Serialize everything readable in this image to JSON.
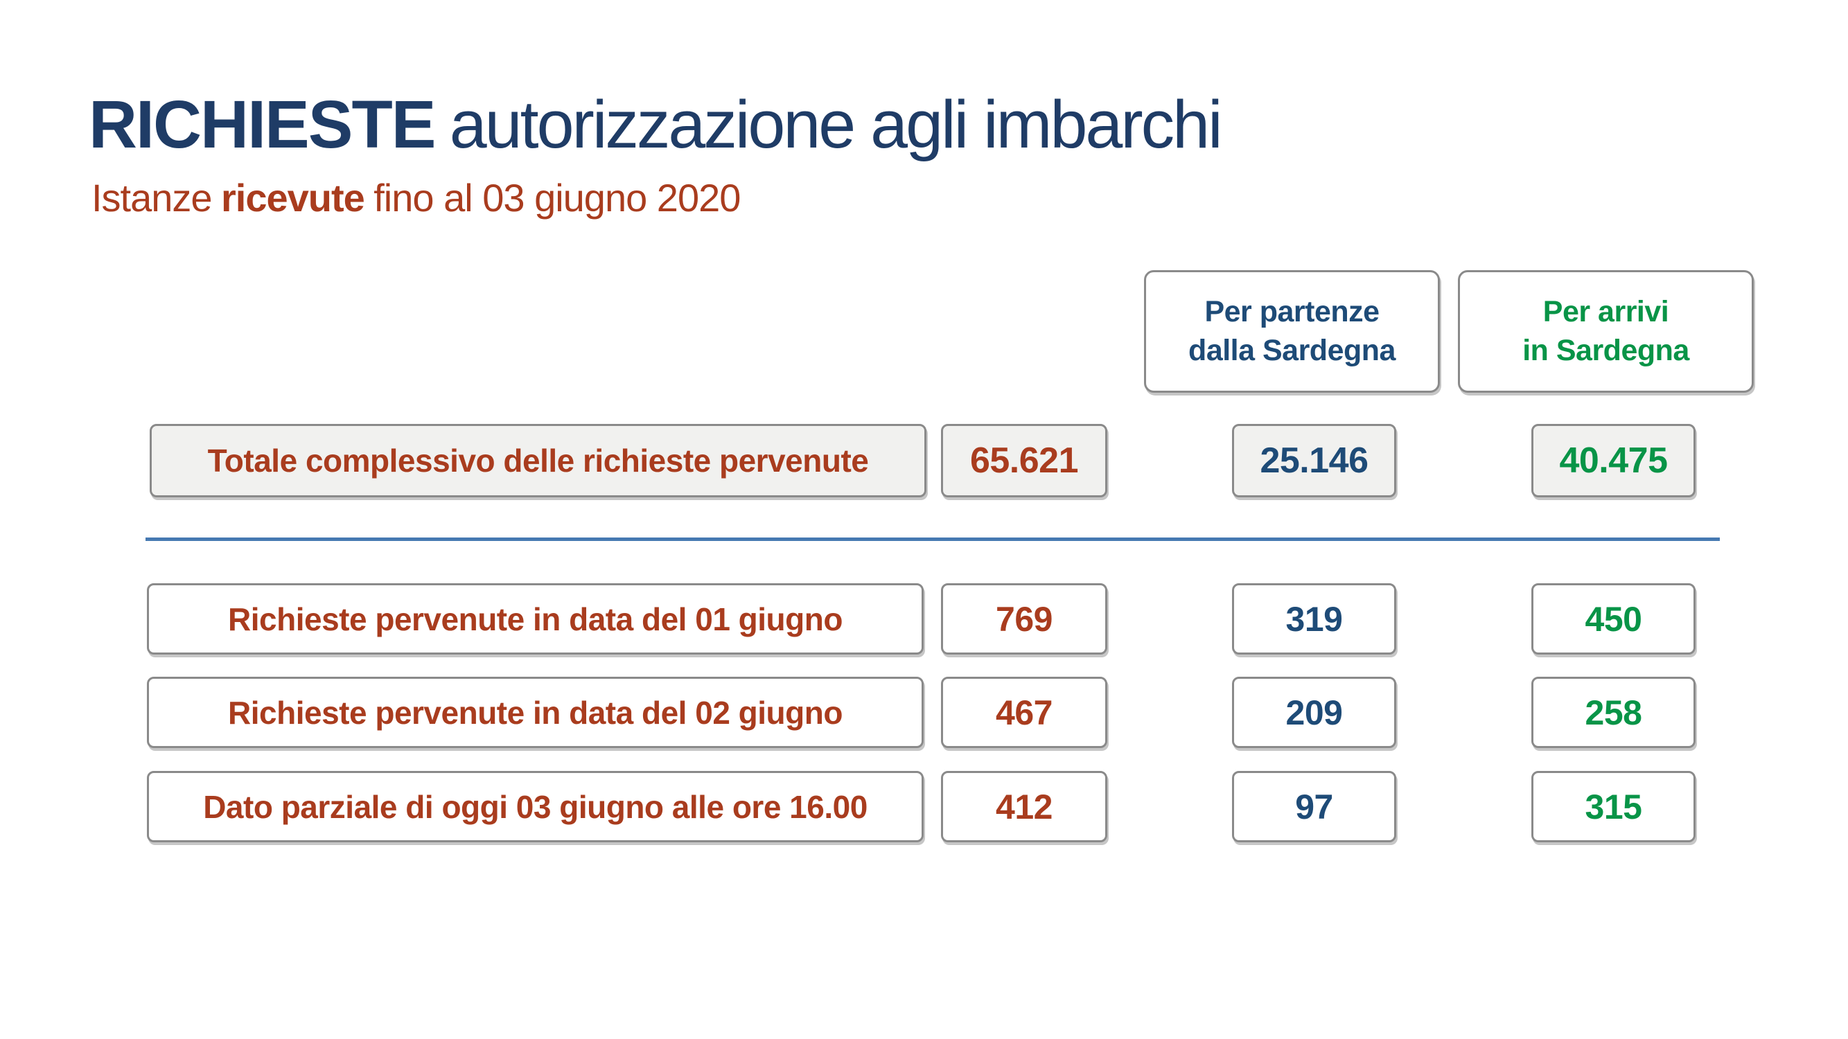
{
  "slide": {
    "title_strong": "RICHIESTE",
    "title_light": "autorizzazione agli imbarchi",
    "subtitle_pre": "Istanze",
    "subtitle_bold": "ricevute",
    "subtitle_post": "fino al 03 giugno 2020"
  },
  "column_headers": {
    "departures_line1": "Per partenze",
    "departures_line2": "dalla Sardegna",
    "arrivals_line1": "Per arrivi",
    "arrivals_line2": "in Sardegna"
  },
  "total_row": {
    "label": "Totale complessivo delle richieste pervenute",
    "overall": "65.621",
    "departures": "25.146",
    "arrivals": "40.475"
  },
  "rows": [
    {
      "label": "Richieste pervenute in data del 01 giugno",
      "overall": "769",
      "departures": "319",
      "arrivals": "450"
    },
    {
      "label": "Richieste pervenute in data del 02 giugno",
      "overall": "467",
      "departures": "209",
      "arrivals": "258"
    },
    {
      "label": "Dato parziale di oggi 03 giugno alle ore 16.00",
      "overall": "412",
      "departures": "97",
      "arrivals": "315"
    }
  ],
  "colors": {
    "title_blue": "#1F3C66",
    "accent_red": "#A93C1E",
    "column_blue": "#1E4B77",
    "column_green": "#089447",
    "divider_blue": "#4679B2",
    "box_border_gray": "#8A8A8A",
    "box_fill_gray": "#F1F1EF"
  }
}
